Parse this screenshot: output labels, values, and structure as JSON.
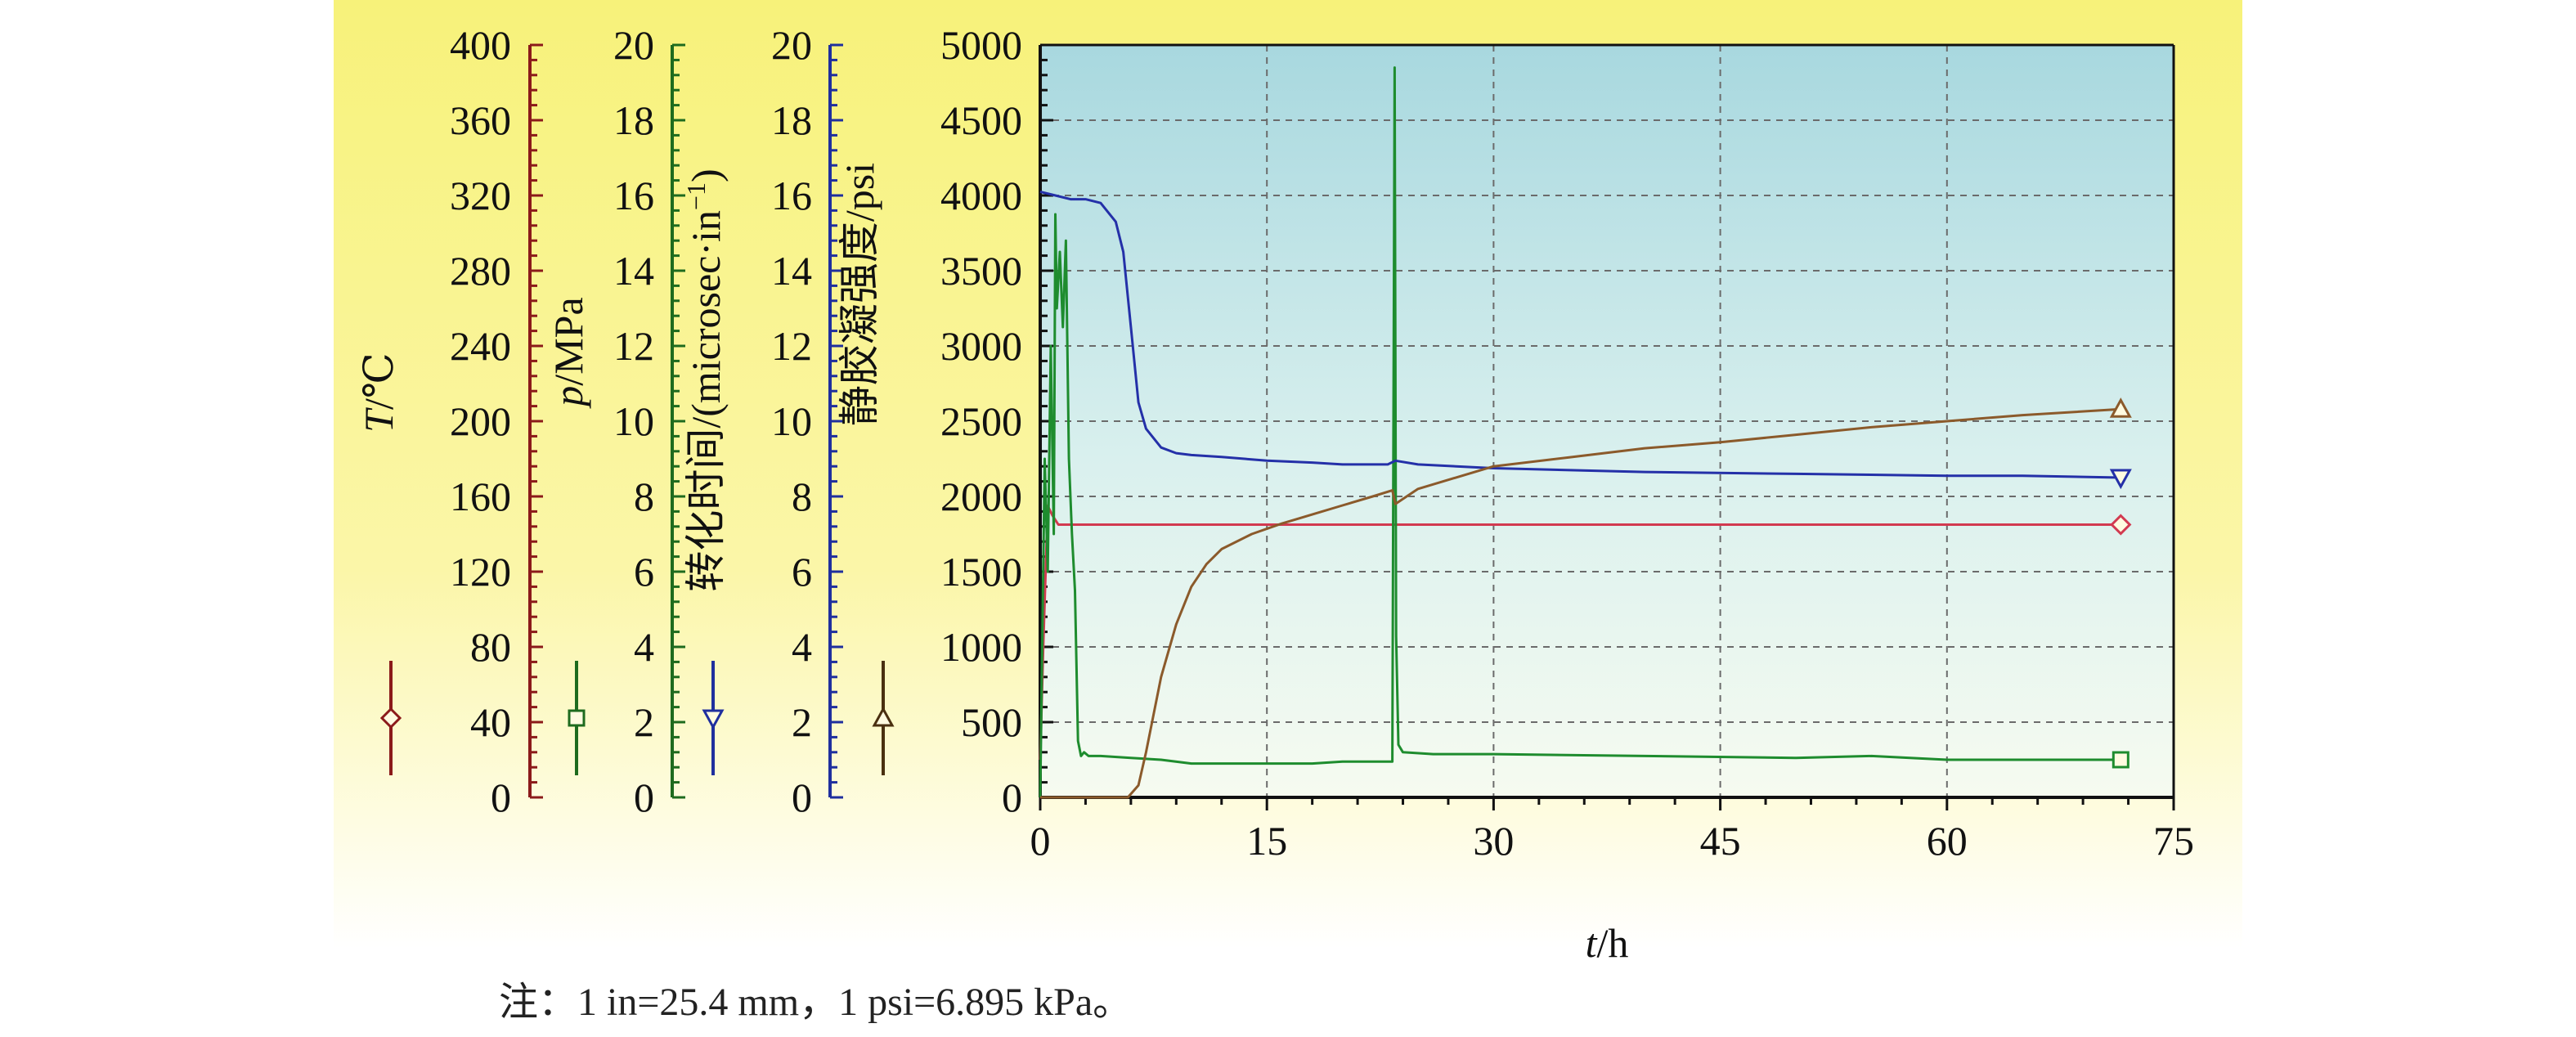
{
  "chart_data": {
    "type": "line",
    "x_axis": {
      "label_italic": "t",
      "label_unit": "/h",
      "ticks": [
        "0",
        "15",
        "30",
        "45",
        "60",
        "75"
      ],
      "range": [
        0,
        75
      ]
    },
    "y_axes": [
      {
        "id": "temp",
        "label_italic": "T",
        "label_unit": "/℃",
        "range": [
          0,
          400
        ],
        "ticks": [
          "0",
          "40",
          "80",
          "120",
          "160",
          "200",
          "240",
          "280",
          "320",
          "360",
          "400"
        ],
        "color": "#8b1a1a",
        "marker": "diamond"
      },
      {
        "id": "pressure",
        "label_italic": "p",
        "label_unit": "/MPa",
        "range": [
          0,
          20
        ],
        "ticks": [
          "0",
          "2",
          "4",
          "6",
          "8",
          "10",
          "12",
          "14",
          "16",
          "18",
          "20"
        ],
        "color": "#1e6b1e",
        "marker": "square"
      },
      {
        "id": "transit",
        "label_plain": "转化时间/(microsec·in",
        "label_sup": "−1",
        "label_close": ")",
        "range": [
          0,
          20
        ],
        "ticks": [
          "0",
          "2",
          "4",
          "6",
          "8",
          "10",
          "12",
          "14",
          "16",
          "18",
          "20"
        ],
        "color": "#1f2f9e",
        "marker": "triangle-down"
      },
      {
        "id": "sgs",
        "label_plain": "静胶凝强度/psi",
        "range": [
          0,
          5000
        ],
        "ticks": [
          "0",
          "500",
          "1000",
          "1500",
          "2000",
          "2500",
          "3000",
          "3500",
          "4000",
          "4500",
          "5000"
        ],
        "color": "#4a3010",
        "marker": "triangle-up"
      }
    ],
    "grid": true,
    "series": [
      {
        "axis": "temp",
        "color": "#d23a50",
        "marker": "diamond",
        "x": [
          0,
          0.2,
          0.5,
          0.8,
          1.2,
          3,
          10,
          20,
          30,
          40,
          50,
          60,
          71.5
        ],
        "y": [
          20,
          80,
          155,
          150,
          145,
          145,
          145,
          145,
          145,
          145,
          145,
          145,
          145
        ]
      },
      {
        "axis": "pressure",
        "color": "#1e8c2e",
        "marker": "square",
        "x": [
          0,
          0.3,
          0.5,
          0.7,
          0.9,
          1.0,
          1.1,
          1.3,
          1.5,
          1.7,
          1.9,
          2.1,
          2.3,
          2.5,
          2.7,
          2.9,
          3.2,
          4,
          6,
          8,
          10,
          14,
          18,
          20,
          22,
          23.3,
          23.45,
          23.55,
          23.7,
          24,
          26,
          30,
          40,
          50,
          55,
          60,
          62,
          71.5
        ],
        "y": [
          0,
          9,
          6,
          12,
          7,
          15.5,
          13,
          14.5,
          12.5,
          14.8,
          9,
          7,
          5.5,
          1.5,
          1.1,
          1.2,
          1.1,
          1.1,
          1.05,
          1.0,
          0.9,
          0.9,
          0.9,
          0.95,
          0.95,
          0.95,
          19.4,
          4.3,
          1.4,
          1.2,
          1.15,
          1.15,
          1.1,
          1.05,
          1.1,
          1.0,
          1.0,
          1.0
        ]
      },
      {
        "axis": "transit",
        "color": "#2430a8",
        "marker": "triangle-down",
        "x": [
          0,
          1,
          2,
          3,
          4,
          5,
          5.5,
          6,
          6.5,
          7,
          8,
          9,
          10,
          12,
          15,
          18,
          20,
          23,
          23.5,
          25,
          30,
          40,
          50,
          60,
          65,
          71.5
        ],
        "y": [
          16.1,
          16.0,
          15.9,
          15.9,
          15.8,
          15.3,
          14.5,
          12.5,
          10.5,
          9.8,
          9.3,
          9.15,
          9.1,
          9.05,
          8.95,
          8.9,
          8.85,
          8.85,
          8.95,
          8.85,
          8.75,
          8.65,
          8.6,
          8.55,
          8.55,
          8.5
        ]
      },
      {
        "axis": "sgs",
        "color": "#8b5a2b",
        "marker": "triangle-up",
        "x": [
          0,
          3,
          5,
          5.8,
          6.5,
          7,
          8,
          9,
          10,
          11,
          12,
          14,
          16,
          18,
          20,
          22,
          23.3,
          23.5,
          25,
          30,
          35,
          40,
          45,
          50,
          55,
          60,
          65,
          71.5
        ],
        "y": [
          0,
          0,
          0,
          0,
          80,
          300,
          800,
          1150,
          1400,
          1550,
          1650,
          1750,
          1820,
          1880,
          1940,
          2000,
          2040,
          1950,
          2050,
          2200,
          2260,
          2320,
          2360,
          2410,
          2460,
          2500,
          2540,
          2580
        ]
      }
    ]
  },
  "note": "注：1 in=25.4 mm，1 psi=6.895 kPa。"
}
